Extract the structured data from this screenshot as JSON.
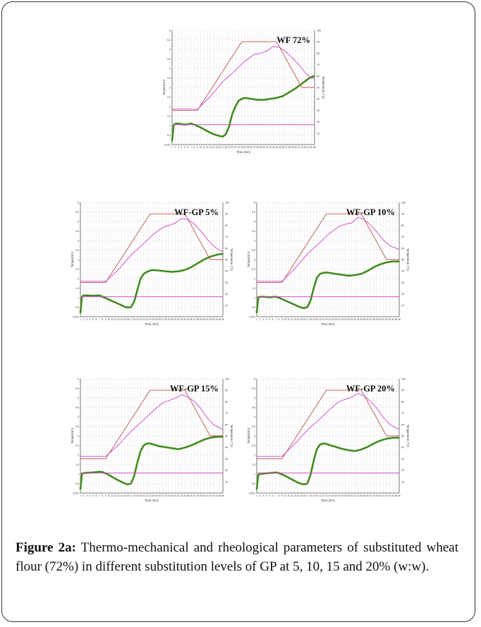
{
  "caption": {
    "label": "Figure 2a:",
    "text": " Thermo-mechanical and rheological parameters of substituted wheat flour (72%) in different substitution levels of GP at 5, 10, 15 and 20% (w:w)."
  },
  "colors": {
    "torque": "#2e8b2e",
    "torque_edge": "#d4a017",
    "temperature_setpoint": "#c0504d",
    "temperature_dough": "#cc44cc",
    "reference_line": "#cc44cc",
    "grid": "#c8c8c8"
  },
  "chart_data": [
    {
      "type": "line",
      "title": "WF 72%",
      "xlabel": "Time (min)",
      "ylabel": "Torque(Nm)",
      "y2label": "Temperature (°C)",
      "xlim": [
        1,
        46
      ],
      "ylim": [
        0,
        6
      ],
      "y2lim": [
        0,
        100
      ],
      "x_ticks": [
        1,
        2,
        3,
        4,
        5,
        6,
        7,
        8,
        9,
        10,
        11,
        12,
        13,
        14,
        15,
        16,
        17,
        18,
        19,
        20,
        21,
        22,
        23,
        24,
        25,
        26,
        27,
        28,
        29,
        30,
        31,
        32,
        33,
        34,
        35,
        36,
        37,
        38,
        39,
        40,
        41,
        42,
        43,
        44,
        45,
        46
      ],
      "y_ticks": [
        "0.001",
        "0.5",
        "1",
        "1.5",
        "2",
        "2.5",
        "3",
        "3.5",
        "4",
        "4.5",
        "5",
        "5.5",
        "6"
      ],
      "y2_ticks": [
        "10",
        "20",
        "30",
        "40",
        "50",
        "60",
        "70",
        "80",
        "90",
        "100"
      ],
      "grid": true,
      "series": [
        {
          "name": "",
          "role": "torque",
          "x": [
            1,
            1.5,
            2,
            3,
            5,
            7,
            8,
            10,
            12,
            14,
            15,
            16,
            17,
            18,
            19,
            20,
            21,
            22,
            23,
            24,
            26,
            28,
            30,
            32,
            34,
            36,
            38,
            40,
            42,
            44,
            45,
            46
          ],
          "y": [
            0.2,
            1.0,
            1.1,
            1.1,
            1.05,
            1.1,
            1.05,
            0.9,
            0.72,
            0.55,
            0.5,
            0.45,
            0.42,
            0.55,
            0.95,
            1.6,
            2.0,
            2.3,
            2.4,
            2.45,
            2.4,
            2.35,
            2.35,
            2.4,
            2.45,
            2.55,
            2.75,
            2.95,
            3.2,
            3.45,
            3.55,
            3.6
          ]
        },
        {
          "name": "",
          "role": "temperature_setpoint",
          "x": [
            1,
            9,
            23,
            34,
            42,
            46
          ],
          "y": [
            30,
            30,
            90,
            90,
            50,
            50
          ]
        },
        {
          "name": "",
          "role": "temperature_dough",
          "x": [
            1,
            9,
            13,
            17,
            21,
            24,
            27,
            29,
            31,
            33,
            35,
            37,
            39,
            41,
            43,
            45,
            46
          ],
          "y": [
            31,
            31,
            42,
            55,
            65,
            73,
            79,
            80,
            82,
            86,
            85,
            81,
            76,
            70,
            63,
            58,
            58
          ]
        },
        {
          "name": "",
          "role": "reference",
          "x": [
            1,
            46
          ],
          "y": [
            1.05,
            1.05
          ]
        }
      ]
    },
    {
      "type": "line",
      "title": "WF-GP 5%",
      "xlabel": "Time (min)",
      "ylabel": "Torque(Nm)",
      "y2label": "Temperature (°C)",
      "xlim": [
        1,
        46
      ],
      "ylim": [
        0,
        6
      ],
      "y2lim": [
        0,
        100
      ],
      "x_ticks": [
        1,
        2,
        3,
        4,
        5,
        6,
        7,
        8,
        9,
        10,
        11,
        12,
        13,
        14,
        15,
        16,
        17,
        18,
        19,
        20,
        21,
        22,
        23,
        24,
        25,
        26,
        27,
        28,
        29,
        30,
        31,
        32,
        33,
        34,
        35,
        36,
        37,
        38,
        39,
        40,
        41,
        42,
        43,
        44,
        45,
        46
      ],
      "y_ticks": [
        "0.001",
        "0.5",
        "1",
        "1.5",
        "2",
        "2.5",
        "3",
        "3.5",
        "4",
        "4.5",
        "5",
        "5.5",
        "6"
      ],
      "y2_ticks": [
        "10",
        "20",
        "30",
        "40",
        "50",
        "60",
        "70",
        "80",
        "90",
        "100"
      ],
      "grid": true,
      "series": [
        {
          "name": "",
          "role": "torque",
          "x": [
            1,
            1.5,
            2,
            3,
            5,
            7,
            8,
            10,
            12,
            14,
            15,
            16,
            17,
            18,
            19,
            20,
            21,
            22,
            23,
            24,
            26,
            28,
            30,
            32,
            34,
            36,
            38,
            40,
            42,
            44,
            45,
            46
          ],
          "y": [
            0.2,
            1.05,
            1.12,
            1.12,
            1.1,
            1.12,
            1.05,
            0.9,
            0.75,
            0.6,
            0.52,
            0.48,
            0.5,
            0.8,
            1.4,
            2.0,
            2.25,
            2.35,
            2.42,
            2.45,
            2.42,
            2.38,
            2.35,
            2.38,
            2.45,
            2.6,
            2.8,
            3.0,
            3.15,
            3.25,
            3.28,
            3.3
          ]
        },
        {
          "name": "",
          "role": "temperature_setpoint",
          "x": [
            1,
            9,
            23,
            34,
            42,
            46
          ],
          "y": [
            30,
            30,
            90,
            90,
            50,
            50
          ]
        },
        {
          "name": "",
          "role": "temperature_dough",
          "x": [
            1,
            9,
            13,
            17,
            21,
            24,
            27,
            29,
            31,
            33,
            35,
            37,
            39,
            41,
            43,
            45,
            46
          ],
          "y": [
            31,
            31,
            41,
            54,
            64,
            72,
            78,
            80,
            82,
            86,
            85,
            81,
            75,
            68,
            62,
            58,
            57
          ]
        },
        {
          "name": "",
          "role": "reference",
          "x": [
            1,
            46
          ],
          "y": [
            1.05,
            1.05
          ]
        }
      ]
    },
    {
      "type": "line",
      "title": "WF-GP 10%",
      "xlabel": "Time (min)",
      "ylabel": "Torque(Nm)",
      "y2label": "Temperature (°C)",
      "xlim": [
        1,
        46
      ],
      "ylim": [
        0,
        6
      ],
      "y2lim": [
        0,
        100
      ],
      "x_ticks": [
        1,
        2,
        3,
        4,
        5,
        6,
        7,
        8,
        9,
        10,
        11,
        12,
        13,
        14,
        15,
        16,
        17,
        18,
        19,
        20,
        21,
        22,
        23,
        24,
        25,
        26,
        27,
        28,
        29,
        30,
        31,
        32,
        33,
        34,
        35,
        36,
        37,
        38,
        39,
        40,
        41,
        42,
        43,
        44,
        45,
        46
      ],
      "y_ticks": [
        "0.001",
        "0.5",
        "1",
        "1.5",
        "2",
        "2.5",
        "3",
        "3.5",
        "4",
        "4.5",
        "5",
        "5.5",
        "6"
      ],
      "y2_ticks": [
        "10",
        "20",
        "30",
        "40",
        "50",
        "60",
        "70",
        "80",
        "90",
        "100"
      ],
      "grid": true,
      "series": [
        {
          "name": "",
          "role": "torque",
          "x": [
            1,
            1.5,
            2,
            3,
            5,
            7,
            8,
            10,
            12,
            14,
            15,
            16,
            17,
            18,
            19,
            20,
            21,
            22,
            23,
            24,
            26,
            28,
            30,
            32,
            34,
            36,
            38,
            40,
            42,
            44,
            45,
            46
          ],
          "y": [
            0.2,
            1.0,
            1.05,
            1.05,
            1.02,
            1.05,
            1.0,
            0.85,
            0.7,
            0.55,
            0.48,
            0.45,
            0.5,
            0.85,
            1.5,
            2.05,
            2.25,
            2.3,
            2.32,
            2.3,
            2.25,
            2.2,
            2.15,
            2.18,
            2.25,
            2.4,
            2.6,
            2.75,
            2.85,
            2.9,
            2.9,
            2.9
          ]
        },
        {
          "name": "",
          "role": "temperature_setpoint",
          "x": [
            1,
            9,
            23,
            34,
            42,
            46
          ],
          "y": [
            30,
            30,
            90,
            90,
            50,
            50
          ]
        },
        {
          "name": "",
          "role": "temperature_dough",
          "x": [
            1,
            9,
            13,
            17,
            21,
            24,
            27,
            29,
            31,
            33,
            35,
            37,
            39,
            41,
            43,
            45,
            46
          ],
          "y": [
            31,
            31,
            42,
            55,
            65,
            73,
            79,
            81,
            82,
            87,
            85,
            80,
            74,
            67,
            62,
            60,
            59
          ]
        },
        {
          "name": "",
          "role": "reference",
          "x": [
            1,
            46
          ],
          "y": [
            1.05,
            1.05
          ]
        }
      ]
    },
    {
      "type": "line",
      "title": "WF-GP 15%",
      "xlabel": "Time (min)",
      "ylabel": "Torque(Nm)",
      "y2label": "Temperature (°C)",
      "xlim": [
        1,
        46
      ],
      "ylim": [
        0,
        6
      ],
      "y2lim": [
        0,
        100
      ],
      "x_ticks": [
        1,
        2,
        3,
        4,
        5,
        6,
        7,
        8,
        9,
        10,
        11,
        12,
        13,
        14,
        15,
        16,
        17,
        18,
        19,
        20,
        21,
        22,
        23,
        24,
        25,
        26,
        27,
        28,
        29,
        30,
        31,
        32,
        33,
        34,
        35,
        36,
        37,
        38,
        39,
        40,
        41,
        42,
        43,
        44,
        45,
        46
      ],
      "y_ticks": [
        "0.001",
        "0.5",
        "1",
        "1.5",
        "2",
        "2.5",
        "3",
        "3.5",
        "4",
        "4.5",
        "5",
        "5.5",
        "6"
      ],
      "y2_ticks": [
        "10",
        "20",
        "30",
        "40",
        "50",
        "60",
        "70",
        "80",
        "90",
        "100"
      ],
      "grid": true,
      "series": [
        {
          "name": "",
          "role": "torque",
          "x": [
            1,
            1.5,
            2,
            3,
            5,
            7,
            8,
            10,
            12,
            14,
            15,
            16,
            17,
            18,
            19,
            20,
            21,
            22,
            23,
            24,
            26,
            28,
            30,
            32,
            34,
            36,
            38,
            40,
            42,
            44,
            45,
            46
          ],
          "y": [
            0.2,
            1.0,
            1.05,
            1.06,
            1.08,
            1.12,
            1.1,
            0.95,
            0.75,
            0.58,
            0.5,
            0.45,
            0.5,
            0.9,
            1.6,
            2.2,
            2.5,
            2.6,
            2.6,
            2.55,
            2.45,
            2.4,
            2.35,
            2.3,
            2.38,
            2.5,
            2.65,
            2.8,
            2.9,
            2.95,
            2.95,
            2.95
          ]
        },
        {
          "name": "",
          "role": "temperature_setpoint",
          "x": [
            1,
            9,
            23,
            34,
            42,
            46
          ],
          "y": [
            30,
            30,
            90,
            90,
            50,
            50
          ]
        },
        {
          "name": "",
          "role": "temperature_dough",
          "x": [
            1,
            9,
            13,
            17,
            21,
            24,
            27,
            29,
            31,
            33,
            35,
            37,
            39,
            41,
            43,
            45,
            46
          ],
          "y": [
            32,
            32,
            42,
            54,
            64,
            72,
            79,
            81,
            83,
            86,
            84,
            80,
            74,
            66,
            60,
            57,
            56
          ]
        },
        {
          "name": "",
          "role": "reference",
          "x": [
            1,
            46
          ],
          "y": [
            1.05,
            1.05
          ]
        }
      ]
    },
    {
      "type": "line",
      "title": "WF-GP 20%",
      "xlabel": "Time (min)",
      "ylabel": "Torque(Nm)",
      "y2label": "Temperature (°C)",
      "xlim": [
        1,
        46
      ],
      "ylim": [
        0,
        6
      ],
      "y2lim": [
        0,
        100
      ],
      "x_ticks": [
        1,
        2,
        3,
        4,
        5,
        6,
        7,
        8,
        9,
        10,
        11,
        12,
        13,
        14,
        15,
        16,
        17,
        18,
        19,
        20,
        21,
        22,
        23,
        24,
        25,
        26,
        27,
        28,
        29,
        30,
        31,
        32,
        33,
        34,
        35,
        36,
        37,
        38,
        39,
        40,
        41,
        42,
        43,
        44,
        45,
        46
      ],
      "y_ticks": [
        "0.001",
        "0.5",
        "1",
        "1.5",
        "2",
        "2.5",
        "3",
        "3.5",
        "4",
        "4.5",
        "5",
        "5.5",
        "6"
      ],
      "y2_ticks": [
        "10",
        "20",
        "30",
        "40",
        "50",
        "60",
        "70",
        "80",
        "90",
        "100"
      ],
      "grid": true,
      "series": [
        {
          "name": "",
          "role": "torque",
          "x": [
            1,
            1.5,
            2,
            3,
            5,
            7,
            8,
            10,
            12,
            14,
            15,
            16,
            17,
            18,
            19,
            20,
            21,
            22,
            23,
            24,
            26,
            28,
            30,
            32,
            34,
            36,
            38,
            40,
            42,
            44,
            45,
            46
          ],
          "y": [
            0.2,
            0.95,
            1.0,
            1.02,
            1.05,
            1.08,
            1.05,
            0.9,
            0.72,
            0.55,
            0.48,
            0.45,
            0.5,
            0.95,
            1.7,
            2.3,
            2.55,
            2.6,
            2.58,
            2.52,
            2.42,
            2.32,
            2.25,
            2.2,
            2.28,
            2.42,
            2.6,
            2.75,
            2.85,
            2.9,
            2.9,
            2.9
          ]
        },
        {
          "name": "",
          "role": "temperature_setpoint",
          "x": [
            1,
            9,
            23,
            34,
            42,
            46
          ],
          "y": [
            30,
            30,
            90,
            90,
            50,
            50
          ]
        },
        {
          "name": "",
          "role": "temperature_dough",
          "x": [
            1,
            9,
            13,
            17,
            21,
            24,
            27,
            29,
            31,
            33,
            35,
            37,
            39,
            41,
            43,
            45,
            46
          ],
          "y": [
            32,
            32,
            43,
            55,
            65,
            73,
            80,
            82,
            84,
            87,
            85,
            80,
            74,
            66,
            60,
            57,
            56
          ]
        },
        {
          "name": "",
          "role": "reference",
          "x": [
            1,
            46
          ],
          "y": [
            1.05,
            1.05
          ]
        }
      ]
    }
  ]
}
